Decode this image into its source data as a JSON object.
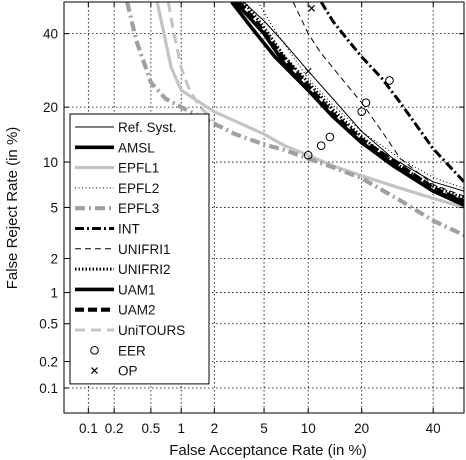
{
  "chart_data": {
    "type": "line",
    "title": "",
    "xlabel": "False Acceptance Rate (in %)",
    "ylabel": "False Reject Rate (in %)",
    "xscale": "normal-deviate (probit)",
    "yscale": "normal-deviate (probit)",
    "xlim": [
      0.05,
      50
    ],
    "ylim": [
      0.05,
      50
    ],
    "grid": true,
    "legend_position": "left",
    "x_ticks": [
      0.1,
      0.2,
      0.5,
      1,
      2,
      5,
      10,
      20,
      40
    ],
    "x_tick_labels": [
      "0.1",
      "0.2",
      "0.5",
      "1",
      "2",
      "5",
      "10",
      "20",
      "40"
    ],
    "y_ticks": [
      0.1,
      0.2,
      0.5,
      1,
      2,
      5,
      10,
      20,
      40
    ],
    "y_tick_labels": [
      "0.1",
      "0.2",
      "0.5",
      "1",
      "2",
      "5",
      "10",
      "20",
      "40"
    ],
    "series": [
      {
        "name": "Ref. Syst.",
        "style": "thin-solid",
        "color": "#000000",
        "x": [
          3.5,
          5,
          7,
          10,
          14,
          20,
          28,
          40,
          50
        ],
        "y": [
          50,
          44,
          37,
          29,
          22,
          15,
          10.5,
          7.5,
          6.5
        ]
      },
      {
        "name": "AMSL",
        "style": "thick-solid",
        "color": "#000000",
        "x": [
          3.0,
          5,
          7,
          10,
          14,
          20,
          28,
          40,
          50
        ],
        "y": [
          50,
          40,
          31,
          24,
          18,
          13,
          9.5,
          6.5,
          5.5
        ]
      },
      {
        "name": "EPFL1",
        "style": "thick-solid-light",
        "color": "#bdbdbd",
        "x": [
          0.58,
          0.8,
          1.0,
          1.5,
          2,
          3,
          5,
          7,
          10,
          14,
          20,
          30,
          40,
          50
        ],
        "y": [
          50,
          30,
          24,
          21,
          19,
          17,
          14.5,
          12.5,
          11,
          9.5,
          8.2,
          6.8,
          5.8,
          5.0
        ]
      },
      {
        "name": "EPFL2",
        "style": "dotted",
        "color": "#000000",
        "x": [
          4.5,
          6,
          8,
          10,
          14,
          20,
          30,
          40,
          50
        ],
        "y": [
          50,
          41,
          33,
          27,
          20.5,
          15,
          10.5,
          8,
          6.8
        ]
      },
      {
        "name": "EPFL3",
        "style": "dash-dot-gray-thick",
        "color": "#9e9e9e",
        "x": [
          0.28,
          0.35,
          0.5,
          0.7,
          1,
          2,
          3,
          5,
          7,
          10,
          14,
          20,
          30,
          40,
          50
        ],
        "y": [
          50,
          38,
          26,
          22,
          20,
          16.5,
          14.5,
          12.7,
          11.8,
          10.5,
          9.3,
          7.9,
          5.6,
          4.0,
          3.1
        ]
      },
      {
        "name": "INT",
        "style": "dash-dot-black-thick",
        "color": "#000000",
        "x": [
          12,
          14,
          17,
          20,
          25,
          30,
          40,
          50
        ],
        "y": [
          50,
          44,
          38,
          33,
          27,
          21,
          12,
          7.5
        ]
      },
      {
        "name": "UNIFRI1",
        "style": "dashed",
        "color": "#000000",
        "x": [
          8,
          10,
          12,
          14,
          17,
          20,
          25,
          30,
          40,
          50
        ],
        "y": [
          50,
          40,
          34,
          30,
          25,
          21,
          15,
          10.5,
          7.2,
          6.0
        ]
      },
      {
        "name": "UNIFRI2",
        "style": "dotted-thick",
        "color": "#000000",
        "x": [
          3.5,
          5,
          7,
          10,
          14,
          20,
          28,
          40,
          50
        ],
        "y": [
          50,
          42,
          33,
          26,
          19.5,
          14,
          10,
          7.0,
          5.8
        ]
      },
      {
        "name": "UAM1",
        "style": "thick-solid",
        "color": "#000000",
        "x": [
          2.8,
          4,
          6,
          10,
          14,
          20,
          30,
          40,
          50
        ],
        "y": [
          50,
          42,
          33,
          24,
          18,
          13,
          9.0,
          6.5,
          5.2
        ]
      },
      {
        "name": "UAM2",
        "style": "thick-dashed",
        "color": "#000000",
        "x": [
          3.2,
          4.5,
          6.5,
          10,
          14,
          20,
          30,
          40,
          50
        ],
        "y": [
          50,
          43,
          34,
          25,
          18.5,
          13.5,
          9.5,
          6.8,
          5.5
        ]
      },
      {
        "name": "UniTOURS",
        "style": "dashed-light",
        "color": "#bdbdbd",
        "x": [
          0.75,
          0.85,
          1.0,
          1.2,
          1.5,
          2.0
        ],
        "y": [
          50,
          40,
          30,
          24,
          20,
          17
        ]
      }
    ],
    "markers": {
      "EER": {
        "symbol": "circle",
        "points": [
          [
            10,
            11
          ],
          [
            12,
            12.5
          ],
          [
            13.5,
            14
          ],
          [
            20,
            19
          ],
          [
            21,
            21
          ],
          [
            27,
            26.5
          ]
        ]
      },
      "OP": {
        "symbol": "x",
        "points": [
          [
            10,
            29
          ],
          [
            10.5,
            48
          ]
        ]
      }
    },
    "legend": [
      {
        "label": "Ref. Syst.",
        "style": "thin-solid"
      },
      {
        "label": "AMSL",
        "style": "thick-solid"
      },
      {
        "label": "EPFL1",
        "style": "thick-solid-light"
      },
      {
        "label": "EPFL2",
        "style": "dotted"
      },
      {
        "label": "EPFL3",
        "style": "dash-dot-gray-thick"
      },
      {
        "label": "INT",
        "style": "dash-dot-black-thick"
      },
      {
        "label": "UNIFRI1",
        "style": "dashed"
      },
      {
        "label": "UNIFRI2",
        "style": "dotted-thick"
      },
      {
        "label": "UAM1",
        "style": "thick-solid"
      },
      {
        "label": "UAM2",
        "style": "thick-dashed"
      },
      {
        "label": "UniTOURS",
        "style": "dashed-light"
      },
      {
        "label": "EER",
        "style": "marker-circle"
      },
      {
        "label": "OP",
        "style": "marker-x"
      }
    ]
  }
}
